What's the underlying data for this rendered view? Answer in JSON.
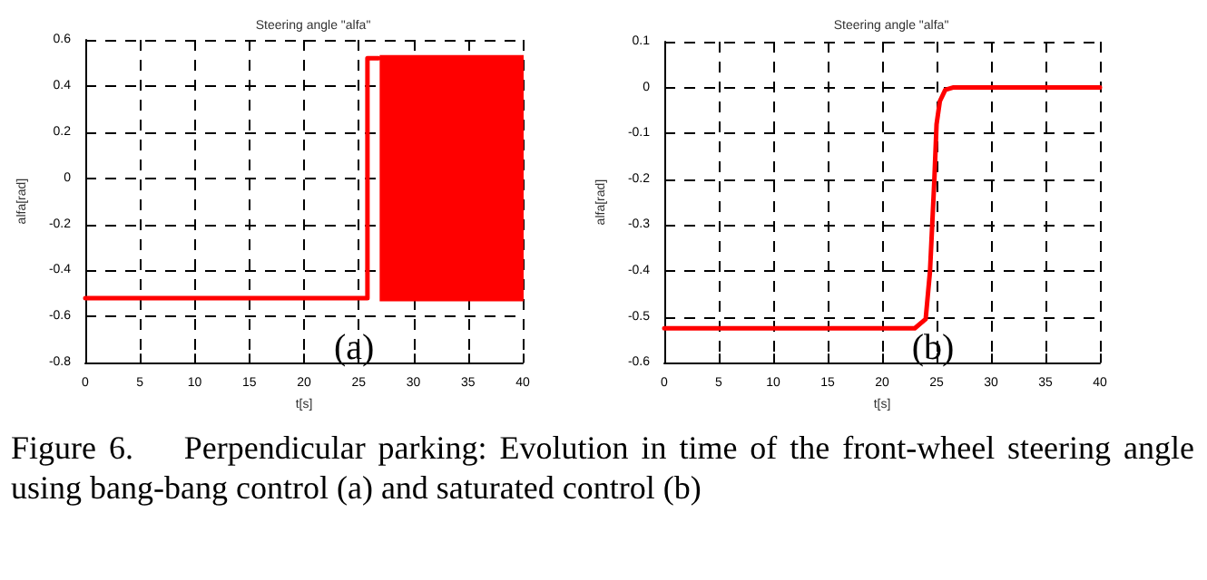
{
  "chart_data": [
    {
      "type": "line",
      "title": "Steering angle \"alfa\"",
      "xlabel": "t[s]",
      "ylabel": "alfa[rad]",
      "annotations": [
        "(a)"
      ],
      "xlim": [
        0,
        40
      ],
      "xticks": [
        0,
        5,
        10,
        15,
        20,
        25,
        30,
        35,
        40
      ],
      "ylim": [
        -0.8,
        0.6
      ],
      "yticks": [
        -0.8,
        -0.6,
        -0.4,
        -0.2,
        0,
        0.2,
        0.4,
        0.6
      ],
      "grid": true,
      "line_style": "solid",
      "marker": "none",
      "series": [
        {
          "color": "#ff0000",
          "x": [
            0,
            25.8,
            25.8,
            26.8
          ],
          "values": [
            -0.52,
            -0.52,
            0.52,
            0.52
          ]
        },
        {
          "color": "#ff0000",
          "x": [
            27,
            40
          ],
          "values": [
            null,
            null
          ],
          "lower": [
            -0.53,
            -0.53
          ],
          "upper": [
            0.53,
            0.53
          ]
        }
      ]
    },
    {
      "type": "line",
      "title": "Steering angle \"alfa\"",
      "xlabel": "t[s]",
      "ylabel": "alfa[rad]",
      "annotations": [
        "(b)",
        "Figure 6.    Perpendicular parking: Evolution in time of the front-wheel steering angle using bang-bang control (a) and saturated control (b)"
      ],
      "xlim": [
        0,
        40
      ],
      "xticks": [
        0,
        5,
        10,
        15,
        20,
        25,
        30,
        35,
        40
      ],
      "ylim": [
        -0.6,
        0.1
      ],
      "yticks": [
        -0.6,
        -0.5,
        -0.4,
        -0.3,
        -0.2,
        -0.1,
        0,
        0.1
      ],
      "grid": true,
      "line_style": "solid",
      "marker": "none",
      "series": [
        {
          "color": "#ff0000",
          "x": [
            0,
            23,
            24,
            24.4,
            24.8,
            25,
            25.3,
            25.8,
            26.5,
            40
          ],
          "values": [
            -0.525,
            -0.525,
            -0.505,
            -0.4,
            -0.2,
            -0.08,
            -0.03,
            -0.005,
            0,
            0
          ]
        }
      ]
    }
  ]
}
